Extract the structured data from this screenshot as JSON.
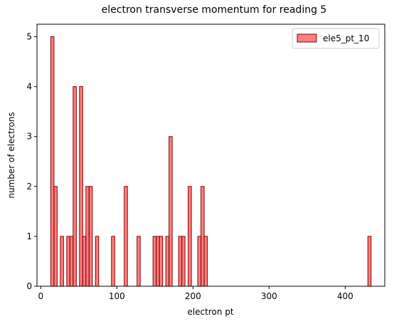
{
  "chart_data": {
    "type": "bar",
    "title": "electron transverse momentum for reading 5",
    "xlabel": "electron pt",
    "ylabel": "number of electrons",
    "xlim": [
      -5,
      452
    ],
    "ylim": [
      0,
      5.25
    ],
    "xticks": [
      0,
      100,
      200,
      300,
      400
    ],
    "yticks": [
      0,
      1,
      2,
      3,
      4,
      5
    ],
    "legend": {
      "placement": "top-right"
    },
    "grid": false,
    "bin_width": 4.2,
    "series": [
      {
        "name": "ele5_pt_10",
        "color": "#ff0000",
        "edge_color": "#800000",
        "bins": [
          {
            "x": 13.1,
            "count": 5
          },
          {
            "x": 17.3,
            "count": 2
          },
          {
            "x": 25.7,
            "count": 1
          },
          {
            "x": 34.1,
            "count": 1
          },
          {
            "x": 38.3,
            "count": 1
          },
          {
            "x": 42.5,
            "count": 4
          },
          {
            "x": 50.9,
            "count": 4
          },
          {
            "x": 55.1,
            "count": 1
          },
          {
            "x": 59.3,
            "count": 2
          },
          {
            "x": 63.5,
            "count": 2
          },
          {
            "x": 71.9,
            "count": 1
          },
          {
            "x": 92.9,
            "count": 1
          },
          {
            "x": 109.7,
            "count": 2
          },
          {
            "x": 126.5,
            "count": 1
          },
          {
            "x": 147.5,
            "count": 1
          },
          {
            "x": 151.7,
            "count": 1
          },
          {
            "x": 155.9,
            "count": 1
          },
          {
            "x": 164.3,
            "count": 1
          },
          {
            "x": 168.5,
            "count": 3
          },
          {
            "x": 181.1,
            "count": 1
          },
          {
            "x": 185.3,
            "count": 1
          },
          {
            "x": 193.7,
            "count": 2
          },
          {
            "x": 206.3,
            "count": 1
          },
          {
            "x": 210.5,
            "count": 2
          },
          {
            "x": 214.7,
            "count": 1
          },
          {
            "x": 429.8,
            "count": 1
          }
        ]
      }
    ]
  }
}
